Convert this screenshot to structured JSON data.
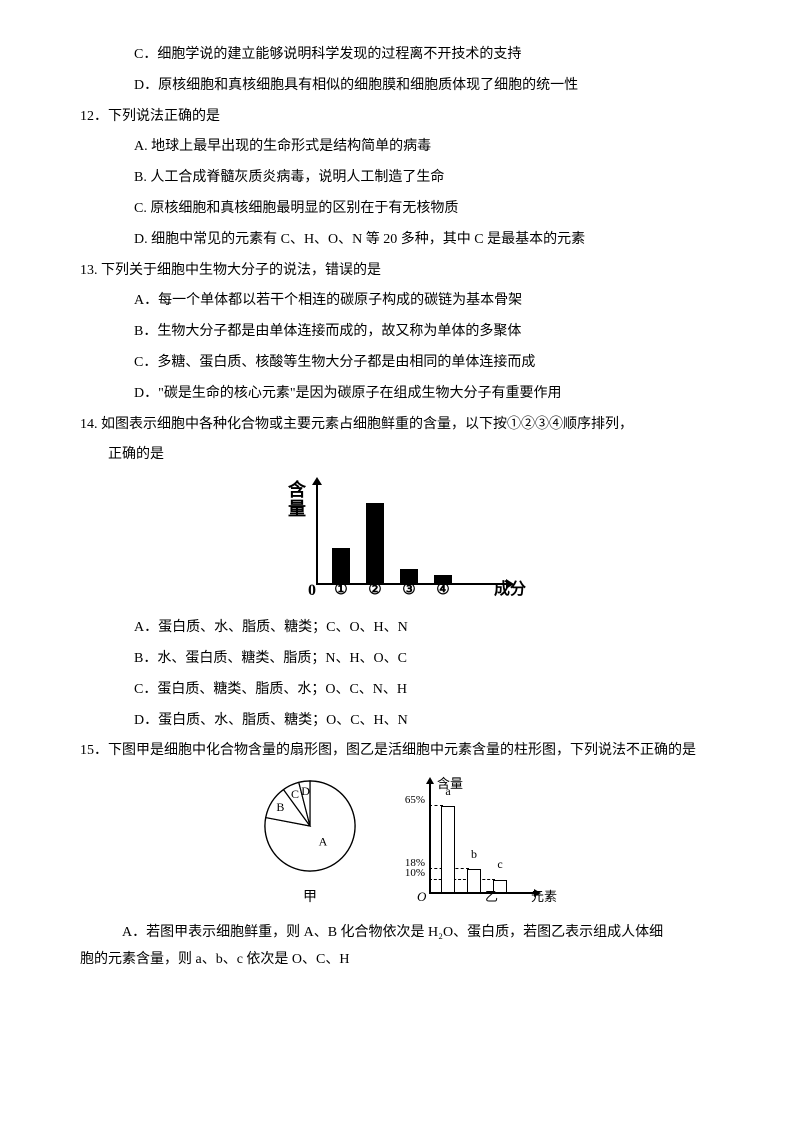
{
  "q11": {
    "optC": "C．细胞学说的建立能够说明科学发现的过程离不开技术的支持",
    "optD": "D．原核细胞和真核细胞具有相似的细胞膜和细胞质体现了细胞的统一性"
  },
  "q12": {
    "stem": "12．下列说法正确的是",
    "optA": "A. 地球上最早出现的生命形式是结构简单的病毒",
    "optB": "B. 人工合成脊髓灰质炎病毒，说明人工制造了生命",
    "optC": "C. 原核细胞和真核细胞最明显的区别在于有无核物质",
    "optD": "D. 细胞中常见的元素有 C、H、O、N 等 20 多种，其中 C 是最基本的元素"
  },
  "q13": {
    "stem": "13. 下列关于细胞中生物大分子的说法，错误的是",
    "optA": "A．每一个单体都以若干个相连的碳原子构成的碳链为基本骨架",
    "optB": "B．生物大分子都是由单体连接而成的，故又称为单体的多聚体",
    "optC": "C．多糖、蛋白质、核酸等生物大分子都是由相同的单体连接而成",
    "optD": "D．\"碳是生命的核心元素\"是因为碳原子在组成生物大分子有重要作用"
  },
  "q14": {
    "stem1": "14. 如图表示细胞中各种化合物或主要元素占细胞鲜重的含量，以下按①②③④顺序排列，",
    "stem2": "正确的是",
    "chart": {
      "type": "bar",
      "y_label": "含量",
      "x_end_label": "成分",
      "origin_label": "0",
      "categories": [
        "①",
        "②",
        "③",
        "④"
      ],
      "values": [
        35,
        80,
        14,
        8
      ],
      "bar_color": "#000000",
      "axis_color": "#000000",
      "background": "#ffffff"
    },
    "optA": "A．蛋白质、水、脂质、糖类；C、O、H、N",
    "optB": "B．水、蛋白质、糖类、脂质；N、H、O、C",
    "optC": "C．蛋白质、糖类、脂质、水；O、C、N、H",
    "optD": "D．蛋白质、水、脂质、糖类；O、C、H、N"
  },
  "q15": {
    "stem": "15．下图甲是细胞中化合物含量的扇形图，图乙是活细胞中元素含量的柱形图，下列说法不正确的是",
    "pie": {
      "type": "pie",
      "caption": "甲",
      "labels": [
        "A",
        "B",
        "C",
        "D"
      ],
      "slice_pcts": [
        78,
        12,
        6,
        4
      ],
      "colors": [
        "#ffffff",
        "#ffffff",
        "#ffffff",
        "#ffffff"
      ],
      "stroke": "#000000",
      "radius": 45
    },
    "bar": {
      "type": "bar",
      "caption": "乙",
      "y_label": "含量",
      "x_label": "元素",
      "origin_label": "O",
      "y_ticks": [
        {
          "label": "65%",
          "value": 65
        },
        {
          "label": "18%",
          "value": 18
        },
        {
          "label": "10%",
          "value": 10
        }
      ],
      "bars": [
        {
          "label": "a",
          "value": 65
        },
        {
          "label": "b",
          "value": 18
        },
        {
          "label": "c",
          "value": 10
        }
      ],
      "bar_fill": "#ffffff",
      "bar_stroke": "#000000",
      "scale_max": 75
    },
    "optA_line1": "A．若图甲表示细胞鲜重，则 A、B 化合物依次是 H₂O、蛋白质，若图乙表示组成人体细",
    "optA_line2": "胞的元素含量，则 a、b、c 依次是 O、C、H"
  }
}
